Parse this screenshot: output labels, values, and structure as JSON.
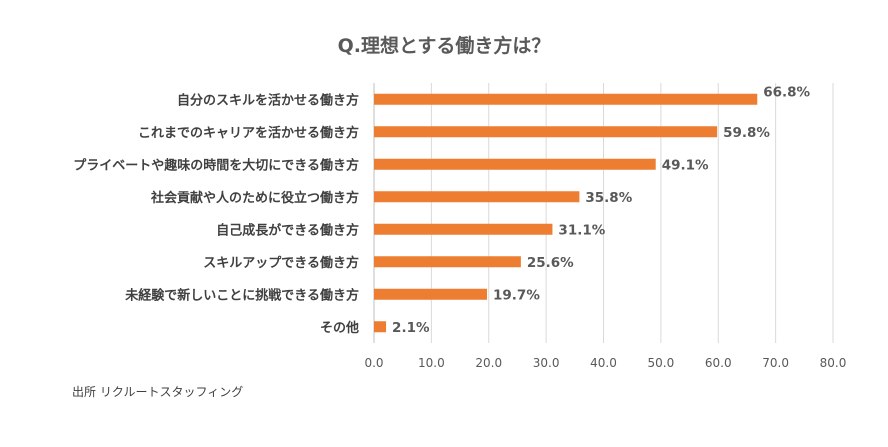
{
  "chart_data": {
    "type": "bar",
    "orientation": "horizontal",
    "title": "Q.理想とする働き方は？",
    "categories": [
      "自分のスキルを活かせる働き方",
      "これまでのキャリアを活かせる働き方",
      "プライベートや趣味の時間を大切にできる働き方",
      "社会貢献や人のために役立つ働き方",
      "自己成長ができる働き方",
      "スキルアップできる働き方",
      "未経験で新しいことに挑戦できる働き方",
      "その他"
    ],
    "values": [
      66.8,
      59.8,
      49.1,
      35.8,
      31.1,
      25.6,
      19.7,
      2.1
    ],
    "value_labels": [
      "66.8%",
      "59.8%",
      "49.1%",
      "35.8%",
      "31.1%",
      "25.6%",
      "19.7%",
      "2.1%"
    ],
    "xlim": [
      0,
      80
    ],
    "xticks": [
      "0.0",
      "10.0",
      "20.0",
      "30.0",
      "40.0",
      "50.0",
      "60.0",
      "70.0",
      "80.0"
    ],
    "grid": true,
    "bar_color": "#ED7D31"
  },
  "source": "出所 リクルートスタッフィング"
}
